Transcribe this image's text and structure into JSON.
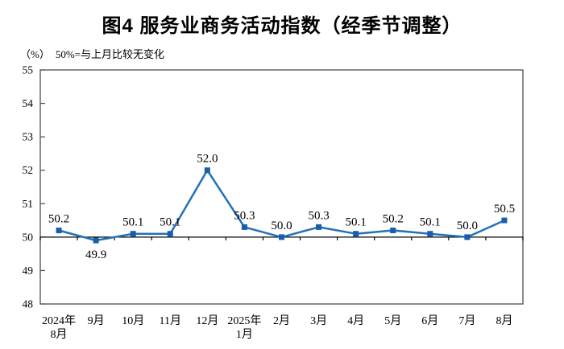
{
  "title": "图4 服务业商务活动指数（经季节调整）",
  "subtitle": {
    "unit": "（%）",
    "note": "50%=与上月比较无变化"
  },
  "colors": {
    "line": "#2371b7",
    "marker": "#1a5dab",
    "frame": "#4d4d4d",
    "baseline": "#000000",
    "text": "#000000"
  },
  "chart_data": {
    "type": "line",
    "title": "图4 服务业商务活动指数（经季节调整）",
    "categories": [
      "2024年\n8月",
      "9月",
      "10月",
      "11月",
      "12月",
      "2025年\n1月",
      "2月",
      "3月",
      "4月",
      "5月",
      "6月",
      "7月",
      "8月"
    ],
    "values": [
      50.2,
      49.9,
      50.1,
      50.1,
      52.0,
      50.3,
      50.0,
      50.3,
      50.1,
      50.2,
      50.1,
      50.0,
      50.5
    ],
    "data_labels": [
      "50.2",
      "49.9",
      "50.1",
      "50.1",
      "52.0",
      "50.3",
      "50.0",
      "50.3",
      "50.1",
      "50.2",
      "50.1",
      "50.0",
      "50.5"
    ],
    "label_below_indices": [
      1
    ],
    "ylim": [
      48,
      55
    ],
    "yticks": [
      48,
      49,
      50,
      51,
      52,
      53,
      54,
      55
    ],
    "baseline": 50,
    "xlabel": "",
    "ylabel": "（%）",
    "grid": false,
    "legend_position": "none",
    "marker_shape": "square"
  }
}
